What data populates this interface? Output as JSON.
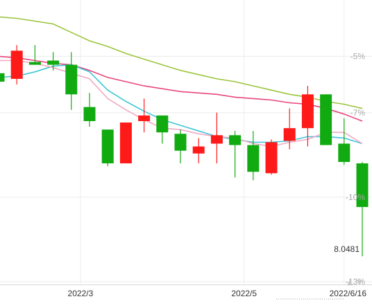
{
  "chart_data": {
    "type": "candlestick",
    "y_axis": {
      "ticks": [
        {
          "value": -5,
          "label": "-5%"
        },
        {
          "value": -7,
          "label": "-7%"
        },
        {
          "value": -10,
          "label": "-10%"
        },
        {
          "value": -13,
          "label": "-13%"
        }
      ],
      "ylim": [
        -13.1,
        -3.0
      ]
    },
    "x_axis": {
      "ticks": [
        {
          "label": "2022/3",
          "index": 4.5
        },
        {
          "label": "2022/5",
          "index": 13.5
        },
        {
          "label": "2022/6/16",
          "index": 19
        }
      ]
    },
    "last_value_label": "8.0481",
    "colors": {
      "up": "#ff1a1a",
      "down": "#11aa11",
      "ma5": "#f2a7c3",
      "ma10": "#3fc6d6",
      "ma20": "#e8457a",
      "ma60": "#9cc43c"
    },
    "candles": [
      {
        "open": -5.9,
        "close": -5.6,
        "high": -5.4,
        "low": -6.0,
        "color": "down"
      },
      {
        "open": -5.8,
        "close": -4.8,
        "high": -4.6,
        "low": -6.0,
        "color": "up"
      },
      {
        "open": -5.2,
        "close": -5.3,
        "high": -4.6,
        "low": -5.3,
        "color": "down"
      },
      {
        "open": -5.15,
        "close": -5.3,
        "high": -4.85,
        "low": -5.5,
        "color": "down"
      },
      {
        "open": -5.3,
        "close": -6.35,
        "high": -4.85,
        "low": -6.9,
        "color": "down"
      },
      {
        "open": -6.8,
        "close": -7.3,
        "high": -6.3,
        "low": -7.5,
        "color": "down"
      },
      {
        "open": -7.6,
        "close": -8.8,
        "high": -7.6,
        "low": -8.9,
        "color": "down"
      },
      {
        "open": -8.8,
        "close": -7.35,
        "high": -7.35,
        "low": -8.8,
        "color": "up"
      },
      {
        "open": -7.1,
        "close": -7.3,
        "high": -6.5,
        "low": -7.7,
        "color": "up"
      },
      {
        "open": -7.1,
        "close": -7.7,
        "high": -7.1,
        "low": -8.1,
        "color": "down"
      },
      {
        "open": -7.75,
        "close": -8.35,
        "high": -7.6,
        "low": -8.8,
        "color": "down"
      },
      {
        "open": -8.45,
        "close": -8.2,
        "high": -7.9,
        "low": -8.8,
        "color": "up"
      },
      {
        "open": -8.1,
        "close": -7.8,
        "high": -7.0,
        "low": -8.8,
        "color": "up"
      },
      {
        "open": -7.8,
        "close": -8.15,
        "high": -7.65,
        "low": -9.3,
        "color": "down"
      },
      {
        "open": -8.15,
        "close": -9.1,
        "high": -7.65,
        "low": -9.4,
        "color": "down"
      },
      {
        "open": -9.15,
        "close": -8.05,
        "high": -7.95,
        "low": -9.2,
        "color": "up"
      },
      {
        "open": -8.0,
        "close": -7.55,
        "high": -6.85,
        "low": -8.3,
        "color": "up"
      },
      {
        "open": -7.55,
        "close": -6.35,
        "high": -6.05,
        "low": -8.2,
        "color": "up"
      },
      {
        "open": -6.35,
        "close": -8.15,
        "high": -6.35,
        "low": -8.15,
        "color": "down"
      },
      {
        "open": -8.1,
        "close": -8.75,
        "high": -7.2,
        "low": -8.85,
        "color": "down"
      },
      {
        "open": -8.8,
        "close": -10.35,
        "high": -8.75,
        "low": -12.1,
        "color": "down"
      }
    ],
    "moving_averages": [
      {
        "color_key": "ma60",
        "values": [
          -3.6,
          -3.65,
          -3.75,
          -3.85,
          -4.15,
          -4.45,
          -4.65,
          -4.9,
          -5.1,
          -5.3,
          -5.5,
          -5.65,
          -5.8,
          -5.9,
          -6.05,
          -6.2,
          -6.35,
          -6.45,
          -6.6,
          -6.7,
          -6.85
        ]
      },
      {
        "color_key": "ma20",
        "values": [
          -5.0,
          -5.05,
          -5.15,
          -5.25,
          -5.3,
          -5.5,
          -5.75,
          -5.9,
          -6.05,
          -6.15,
          -6.25,
          -6.3,
          -6.35,
          -6.45,
          -6.5,
          -6.55,
          -6.65,
          -6.7,
          -6.85,
          -7.05,
          -7.3
        ]
      },
      {
        "color_key": "ma10",
        "values": [
          -5.75,
          -5.7,
          -5.55,
          -5.35,
          -5.3,
          -5.55,
          -6.2,
          -6.6,
          -6.95,
          -7.25,
          -7.45,
          -7.65,
          -7.85,
          -7.95,
          -8.05,
          -8.05,
          -8.0,
          -7.85,
          -7.85,
          -7.9,
          -8.1
        ]
      },
      {
        "color_key": "ma5",
        "values": [
          -5.15,
          -5.15,
          -5.25,
          -5.4,
          -5.6,
          -5.8,
          -6.5,
          -6.9,
          -7.25,
          -7.55,
          -7.6,
          -7.75,
          -7.85,
          -7.9,
          -8.1,
          -8.2,
          -8.05,
          -7.95,
          -7.7,
          -7.7,
          -8.1
        ]
      }
    ]
  }
}
